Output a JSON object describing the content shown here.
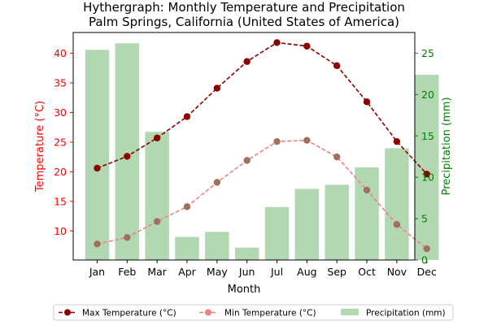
{
  "chart_data": {
    "type": "bar+line",
    "title_line1": "Hythergraph: Monthly Temperature and Precipitation",
    "title_line2": "Palm Springs, California (United States of America)",
    "xlabel": "Month",
    "ylabel_left": "Temperature (°C)",
    "ylabel_right": "Precipitation (mm)",
    "categories": [
      "Jan",
      "Feb",
      "Mar",
      "Apr",
      "May",
      "Jun",
      "Jul",
      "Aug",
      "Sep",
      "Oct",
      "Nov",
      "Dec"
    ],
    "ylim_left": [
      5.1,
      43.5
    ],
    "ylim_right": [
      0,
      27.5
    ],
    "left_ticks": [
      10,
      15,
      20,
      25,
      30,
      35,
      40
    ],
    "right_ticks": [
      0,
      5,
      10,
      15,
      20,
      25
    ],
    "series": [
      {
        "name": "Max Temperature (°C)",
        "kind": "line",
        "axis": "left",
        "color": "#8b0000",
        "values": [
          20.6,
          22.6,
          25.7,
          29.3,
          34.1,
          38.6,
          41.8,
          41.2,
          37.9,
          31.8,
          25.1,
          19.6
        ]
      },
      {
        "name": "Min Temperature (°C)",
        "kind": "line",
        "axis": "left",
        "color": "#f08080",
        "values": [
          7.8,
          8.9,
          11.6,
          14.1,
          18.2,
          21.9,
          25.1,
          25.3,
          22.5,
          16.9,
          11.1,
          7.0
        ]
      },
      {
        "name": "Precipitation (mm)",
        "kind": "bar",
        "axis": "right",
        "color": "#b2d8b2",
        "values": [
          25.4,
          26.2,
          15.5,
          2.8,
          3.4,
          1.5,
          6.4,
          8.6,
          9.1,
          11.2,
          13.5,
          22.4
        ]
      }
    ],
    "legend_position": "bottom",
    "grid": false,
    "colors": {
      "left_axis": "#ff0000",
      "right_axis": "#008000",
      "max_line": "#8b0000",
      "min_line": "#f08080",
      "min_marker": "#a0705a",
      "bar": "#b2d8b2"
    }
  }
}
